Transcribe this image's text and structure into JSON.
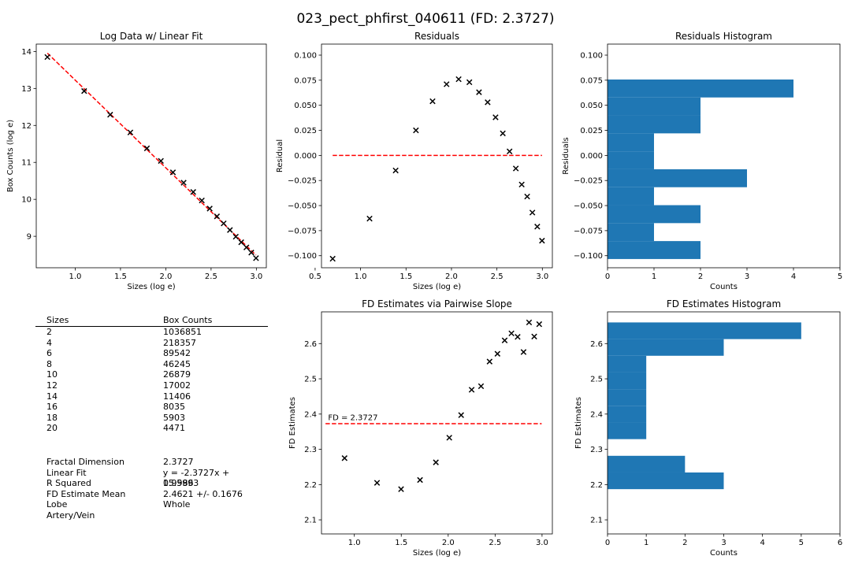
{
  "figure": {
    "title": "023_pect_phfirst_040611 (FD: 2.3727)"
  },
  "chart_data": [
    {
      "type": "scatter",
      "title": "Log Data w/ Linear Fit",
      "xlabel": "Sizes (log e)",
      "ylabel": "Box Counts (log e)",
      "xlim": [
        0.57,
        3.11
      ],
      "ylim": [
        8.15,
        14.2
      ],
      "xticks": [
        "1.0",
        "1.5",
        "2.0",
        "2.5",
        "3.0"
      ],
      "xtick_values": [
        1.0,
        1.5,
        2.0,
        2.5,
        3.0
      ],
      "yticks": [
        "9",
        "10",
        "11",
        "12",
        "13",
        "14"
      ],
      "ytick_values": [
        9,
        10,
        11,
        12,
        13,
        14
      ],
      "points_x": [
        0.693,
        1.099,
        1.386,
        1.609,
        1.792,
        1.946,
        2.079,
        2.197,
        2.303,
        2.398,
        2.485,
        2.565,
        2.639,
        2.708,
        2.773,
        2.833,
        2.89,
        2.944,
        2.996
      ],
      "points_y": [
        13.85,
        12.93,
        12.29,
        11.81,
        11.38,
        11.04,
        10.73,
        10.45,
        10.2,
        9.97,
        9.75,
        9.54,
        9.35,
        9.17,
        8.99,
        8.84,
        8.7,
        8.56,
        8.41
      ],
      "fit": {
        "slope": -2.3727,
        "intercept": 15.5993,
        "x_range": [
          0.693,
          2.996
        ],
        "color": "#ff0000"
      },
      "grid": false
    },
    {
      "type": "scatter",
      "title": "Residuals",
      "xlabel": "Sizes (log e)",
      "ylabel": "Residual",
      "xlim": [
        0.57,
        3.11
      ],
      "ylim": [
        -0.112,
        0.111
      ],
      "xticks": [
        "0.5",
        "1.0",
        "1.5",
        "2.0",
        "2.5",
        "3.0"
      ],
      "xtick_values": [
        0.5,
        1.0,
        1.5,
        2.0,
        2.5,
        3.0
      ],
      "yticks": [
        "−0.100",
        "−0.075",
        "−0.050",
        "−0.025",
        "0.000",
        "0.025",
        "0.050",
        "0.075",
        "0.100"
      ],
      "ytick_values": [
        -0.1,
        -0.075,
        -0.05,
        -0.025,
        0.0,
        0.025,
        0.05,
        0.075,
        0.1
      ],
      "points_x": [
        0.693,
        1.099,
        1.386,
        1.609,
        1.792,
        1.946,
        2.079,
        2.197,
        2.303,
        2.398,
        2.485,
        2.565,
        2.639,
        2.708,
        2.773,
        2.833,
        2.89,
        2.944,
        2.996
      ],
      "points_y": [
        -0.103,
        -0.063,
        -0.015,
        0.025,
        0.054,
        0.071,
        0.076,
        0.073,
        0.063,
        0.053,
        0.038,
        0.022,
        0.004,
        -0.013,
        -0.029,
        -0.041,
        -0.057,
        -0.071,
        -0.085
      ],
      "refline": {
        "y": 0.0,
        "x_range": [
          0.693,
          2.996
        ],
        "color": "#ff0000"
      },
      "grid": false
    },
    {
      "type": "bar",
      "orientation": "horizontal",
      "title": "Residuals Histogram",
      "xlabel": "Counts",
      "ylabel": "Residuals",
      "xlim": [
        0,
        5
      ],
      "ylim": [
        -0.112,
        0.111
      ],
      "xticks": [
        "0",
        "1",
        "2",
        "3",
        "4",
        "5"
      ],
      "xtick_values": [
        0,
        1,
        2,
        3,
        4,
        5
      ],
      "yticks": [
        "−0.100",
        "−0.075",
        "−0.050",
        "−0.025",
        "0.000",
        "0.025",
        "0.050",
        "0.075",
        "0.100"
      ],
      "ytick_values": [
        -0.1,
        -0.075,
        -0.05,
        -0.025,
        0.0,
        0.025,
        0.05,
        0.075,
        0.1
      ],
      "bin_edges": [
        -0.1033,
        -0.0854,
        -0.0675,
        -0.0496,
        -0.0317,
        -0.0138,
        0.0041,
        0.022,
        0.0399,
        0.0578,
        0.0757
      ],
      "counts": [
        2,
        1,
        2,
        1,
        3,
        1,
        1,
        2,
        2,
        4
      ],
      "color": "#1f77b4",
      "grid": false
    },
    {
      "type": "scatter",
      "title": "FD Estimates via Pairwise Slope",
      "xlabel": "Sizes (log e)",
      "ylabel": "FD Estimates",
      "xlim": [
        0.65,
        3.11
      ],
      "ylim": [
        2.06,
        2.69
      ],
      "xticks": [
        "1.0",
        "1.5",
        "2.0",
        "2.5",
        "3.0"
      ],
      "xtick_values": [
        1.0,
        1.5,
        2.0,
        2.5,
        3.0
      ],
      "yticks": [
        "2.1",
        "2.2",
        "2.3",
        "2.4",
        "2.5",
        "2.6"
      ],
      "ytick_values": [
        2.1,
        2.2,
        2.3,
        2.4,
        2.5,
        2.6
      ],
      "points_x": [
        0.896,
        1.242,
        1.498,
        1.7,
        1.869,
        2.012,
        2.138,
        2.25,
        2.35,
        2.441,
        2.525,
        2.602,
        2.674,
        2.74,
        2.803,
        2.862,
        2.917,
        2.97
      ],
      "points_y": [
        2.275,
        2.205,
        2.187,
        2.213,
        2.263,
        2.333,
        2.397,
        2.469,
        2.479,
        2.549,
        2.571,
        2.609,
        2.629,
        2.619,
        2.576,
        2.66,
        2.62,
        2.655
      ],
      "refline": {
        "y": 2.3727,
        "x_range": [
          0.693,
          2.996
        ],
        "color": "#ff0000"
      },
      "annotation": {
        "text": "FD = 2.3727",
        "x": 0.72,
        "y": 2.383
      },
      "grid": false
    },
    {
      "type": "bar",
      "orientation": "horizontal",
      "title": "FD Estimates Histogram",
      "xlabel": "Counts",
      "ylabel": "FD Estimates",
      "xlim": [
        0,
        6
      ],
      "ylim": [
        2.06,
        2.69
      ],
      "xticks": [
        "0",
        "1",
        "2",
        "3",
        "4",
        "5",
        "6"
      ],
      "xtick_values": [
        0,
        1,
        2,
        3,
        4,
        5,
        6
      ],
      "yticks": [
        "2.1",
        "2.2",
        "2.3",
        "2.4",
        "2.5",
        "2.6"
      ],
      "ytick_values": [
        2.1,
        2.2,
        2.3,
        2.4,
        2.5,
        2.6
      ],
      "bin_edges": [
        2.187,
        2.2343,
        2.2816,
        2.3289,
        2.3762,
        2.4235,
        2.4708,
        2.5181,
        2.5654,
        2.6127,
        2.66
      ],
      "counts": [
        3,
        2,
        0,
        1,
        1,
        1,
        1,
        1,
        3,
        5
      ],
      "color": "#1f77b4",
      "grid": false
    }
  ],
  "stats_table": {
    "headers": {
      "sizes": "Sizes",
      "box_counts": "Box Counts"
    },
    "rows": [
      {
        "size": "2",
        "count": "1036851"
      },
      {
        "size": "4",
        "count": "218357"
      },
      {
        "size": "6",
        "count": "89542"
      },
      {
        "size": "8",
        "count": "46245"
      },
      {
        "size": "10",
        "count": "26879"
      },
      {
        "size": "12",
        "count": "17002"
      },
      {
        "size": "14",
        "count": "11406"
      },
      {
        "size": "16",
        "count": "8035"
      },
      {
        "size": "18",
        "count": "5903"
      },
      {
        "size": "20",
        "count": "4471"
      }
    ],
    "summary": [
      {
        "label": "Fractal Dimension",
        "value": "2.3727"
      },
      {
        "label": "Linear Fit",
        "value": "y = -2.3727x + 15.5993"
      },
      {
        "label": "R Squared",
        "value": "0.9986"
      },
      {
        "label": "FD Estimate Mean",
        "value": "2.4621 +/- 0.1676"
      },
      {
        "label": "Lobe",
        "value": "Whole"
      },
      {
        "label": "Artery/Vein",
        "value": ""
      }
    ]
  }
}
